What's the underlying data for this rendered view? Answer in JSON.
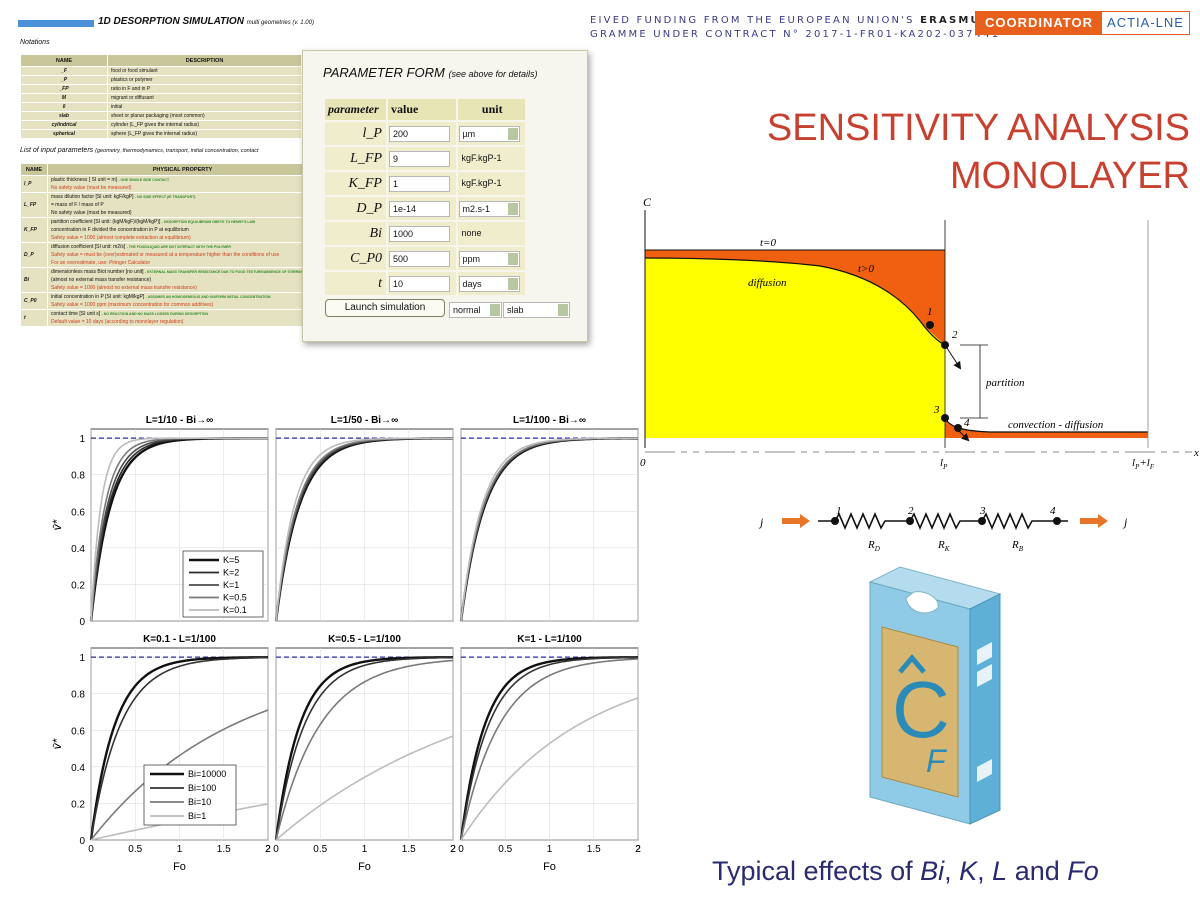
{
  "header": {
    "banner_line1_prefix": "EIVED FUNDING FROM THE EUROPEAN UNION'S ",
    "banner_line1_bold": "ERASMUS",
    "banner_line2": "GRAMME UNDER CONTRACT N° 2017-1-FR01-KA202-037441",
    "coordinator_label": "COORDINATOR",
    "coordinator_name": "ACTIA-LNE"
  },
  "slide_title_line1": "SENSITIVITY ANALYSIS",
  "slide_title_line2": "MONOLAYER",
  "caption": {
    "prefix": "Typical effects of ",
    "bi": "Bi",
    "sep1": ", ",
    "k": "K",
    "sep2": ", ",
    "l": "L",
    "and": " and ",
    "fo": "Fo"
  },
  "spreadsheet": {
    "title": "1D DESORPTION SIMULATION",
    "title_suffix": "multi geometries (v. 1.00)",
    "notations_label": "Notations",
    "notation_headers": [
      "NAME",
      "DESCRIPTION"
    ],
    "notations": [
      [
        "_F",
        "food or food simulant"
      ],
      [
        "_P",
        "plastics or polymer"
      ],
      [
        "_FP",
        "ratio in F and in P"
      ],
      [
        "M",
        "migrant or diffusant"
      ],
      [
        "0",
        "initial"
      ],
      [
        "slab",
        "sheet or planar packaging (most common)"
      ],
      [
        "cylindrical",
        "cylinder (L_FP gives the internal radius)"
      ],
      [
        "spherical",
        "sphere (L_FP gives the internal radius)"
      ]
    ],
    "input_label": "List of input parameters",
    "input_label_suffix": "(geometry, thermodynamics, transport, initial concentration, contact",
    "param_headers": [
      "NAME",
      "PHYSICAL PROPERTY"
    ],
    "params": [
      {
        "name": "l_P",
        "lines": [
          {
            "t": "plastic thickness [ SI unit = m]",
            "g": "- ONE SINGLE SIDE CONTACT"
          },
          {
            "t": "No safety value (must be measured)",
            "r": true
          }
        ]
      },
      {
        "name": "L_FP",
        "lines": [
          {
            "t": "mass dilution factor [SI unit: kgF/kgP]",
            "g": "- NO SIDE EFFECT (IE TRANSPORT)"
          },
          {
            "t": "= mass of F / mass of P"
          },
          {
            "t": "No safety value (must be measured)"
          }
        ]
      },
      {
        "name": "K_FP",
        "lines": [
          {
            "t": "partition coefficient [SI unit: (kgM/kgF)/(kgM/kgP)]",
            "g": "- DESORPTION EQUILIBRIUM OBEYS TO HENRY'S LAW"
          },
          {
            "t": "concentration in F divided the concentration in P at equilibrium"
          },
          {
            "t": "Safety value = 1000 (almost complete extraction at equilibrium)",
            "r": true
          }
        ]
      },
      {
        "name": "D_P",
        "lines": [
          {
            "t": "diffusion coefficient [SI unit: m2/s]",
            "g": "- THE FOOD/LIQUID ARE NOT INTERACT WITH THE POLYMER"
          },
          {
            "t": "Safety value = must be (over)estimated or measured at a temperature higher than the conditions of use",
            "r": true
          },
          {
            "t": "For an overestimate, use: Piringer Calculator",
            "r": true
          }
        ]
      },
      {
        "name": "Bi",
        "lines": [
          {
            "t": "dimensionless mass Biot number [no unit]",
            "g": "- EXTERNAL MASS TRANSFER RESISTANCE DUE TO FOOD TEXTURE/ABSENCE OF STIRRING"
          },
          {
            "t": "(almost no external mass transfer resistance)"
          },
          {
            "t": "Safety value = 1000 (almost no external mass transfer resistance)",
            "r": true
          }
        ]
      },
      {
        "name": "C_P0",
        "lines": [
          {
            "t": "initial concentration in P [SI unit: kgM/kgP]",
            "g": "- ASSUMES AN HOMOGENEOUS AND UNIFORM INITIAL CONCENTRATION"
          },
          {
            "t": "Safety value = 1000 ppm (maximum concentration for common additives)",
            "r": true
          }
        ]
      },
      {
        "name": "t",
        "lines": [
          {
            "t": "contact time [SI unit s]",
            "g": "- NO REACTION AND NO MASS LOSSES DURING DESORPTION"
          },
          {
            "t": "Default value = 10 days (according to monolayer regulation)",
            "r": true
          }
        ]
      }
    ]
  },
  "form": {
    "title": "PARAMETER FORM",
    "title_note": "(see above for details)",
    "col_parameter": "parameter",
    "col_value": "value",
    "col_unit": "unit",
    "rows": [
      {
        "param": "l_P",
        "value": "200",
        "unit": "µm",
        "unit_dropdown": true
      },
      {
        "param": "L_FP",
        "value": "9",
        "unit": "kgF.kgP-1",
        "unit_dropdown": false
      },
      {
        "param": "K_FP",
        "value": "1",
        "unit": "kgF.kgP-1",
        "unit_dropdown": false
      },
      {
        "param": "D_P",
        "value": "1e-14",
        "unit": "m2.s-1",
        "unit_dropdown": true
      },
      {
        "param": "Bi",
        "value": "1000",
        "unit": "none",
        "unit_dropdown": false
      },
      {
        "param": "C_P0",
        "value": "500",
        "unit": "ppm",
        "unit_dropdown": true
      },
      {
        "param": "t",
        "value": "10",
        "unit": "days",
        "unit_dropdown": true
      }
    ],
    "launch_label": "Launch simulation",
    "mode_value": "normal",
    "geometry_value": "slab"
  },
  "diagram": {
    "axis_c": "C",
    "axis_x": "x",
    "t0": "t=0",
    "tpos": "t>0",
    "diffusion": "diffusion",
    "partition": "partition",
    "convection": "convection - diffusion",
    "origin": "0",
    "lp": "l",
    "lp_sub": "P",
    "lplf": "l",
    "lplf_sub1": "P",
    "lplf_plus": "+l",
    "lplf_sub2": "F",
    "points": [
      "1",
      "2",
      "3",
      "4"
    ],
    "colors": {
      "polymer": "#ffff00",
      "released": "#f06010"
    }
  },
  "resistance": {
    "j_in": "j",
    "j_out": "j",
    "nodes": [
      "1",
      "2",
      "3",
      "4"
    ],
    "labels": [
      {
        "r": "R",
        "sub": "D"
      },
      {
        "r": "R",
        "sub": "K"
      },
      {
        "r": "R",
        "sub": "B"
      }
    ]
  },
  "logo": {
    "letter": "C",
    "sub": "F"
  },
  "chart_data": [
    {
      "type": "line",
      "title": "L=1/10 - Bi→∞",
      "xlabel": "",
      "ylabel": "v̄*",
      "xlim": [
        0,
        2
      ],
      "ylim": [
        0,
        1.05
      ],
      "x_ticks": [
        "0",
        "0.5",
        "1",
        "1.5",
        "2"
      ],
      "y_ticks": [
        "0",
        "0.2",
        "0.4",
        "0.6",
        "0.8",
        "1"
      ],
      "series": [
        {
          "name": "K=5",
          "rate": 4.5,
          "plateau": 1.0
        },
        {
          "name": "K=2",
          "rate": 4.9,
          "plateau": 1.0
        },
        {
          "name": "K=1",
          "rate": 5.4,
          "plateau": 1.0
        },
        {
          "name": "K=0.5",
          "rate": 6.3,
          "plateau": 1.0
        },
        {
          "name": "K=0.1",
          "rate": 9.0,
          "plateau": 1.0
        }
      ]
    },
    {
      "type": "line",
      "title": "L=1/50 - Bi→∞",
      "xlim": [
        0,
        2
      ],
      "ylim": [
        0,
        1.05
      ],
      "series": [
        {
          "name": "K=5",
          "rate": 3.8,
          "plateau": 1.0
        },
        {
          "name": "K=2",
          "rate": 3.9,
          "plateau": 1.0
        },
        {
          "name": "K=1",
          "rate": 4.0,
          "plateau": 1.0
        },
        {
          "name": "K=0.5",
          "rate": 4.2,
          "plateau": 1.0
        },
        {
          "name": "K=0.1",
          "rate": 4.8,
          "plateau": 1.0
        }
      ]
    },
    {
      "type": "line",
      "title": "L=1/100 - Bi→∞",
      "xlim": [
        0,
        2
      ],
      "ylim": [
        0,
        1.05
      ],
      "series": [
        {
          "name": "K=5",
          "rate": 3.7,
          "plateau": 1.0
        },
        {
          "name": "K=2",
          "rate": 3.75,
          "plateau": 1.0
        },
        {
          "name": "K=1",
          "rate": 3.8,
          "plateau": 1.0
        },
        {
          "name": "K=0.5",
          "rate": 3.9,
          "plateau": 1.0
        },
        {
          "name": "K=0.1",
          "rate": 4.2,
          "plateau": 1.0
        }
      ]
    },
    {
      "type": "line",
      "title": "K=0.1 - L=1/100",
      "xlabel": "Fo",
      "ylabel": "v̄*",
      "xlim": [
        0,
        2
      ],
      "ylim": [
        0,
        1.05
      ],
      "series": [
        {
          "name": "Bi=10000",
          "rate": 3.7,
          "plateau": 1.0
        },
        {
          "name": "Bi=100",
          "rate": 3.0,
          "plateau": 1.0
        },
        {
          "name": "Bi=10",
          "rate": 0.62,
          "plateau": 1.0
        },
        {
          "name": "Bi=1",
          "rate": 0.11,
          "plateau": 1.0
        }
      ]
    },
    {
      "type": "line",
      "title": "K=0.5 - L=1/100",
      "xlabel": "Fo",
      "xlim": [
        0,
        2
      ],
      "ylim": [
        0,
        1.05
      ],
      "series": [
        {
          "name": "Bi=10000",
          "rate": 3.7,
          "plateau": 1.0
        },
        {
          "name": "Bi=100",
          "rate": 3.1,
          "plateau": 1.0
        },
        {
          "name": "Bi=10",
          "rate": 2.0,
          "plateau": 1.0
        },
        {
          "name": "Bi=1",
          "rate": 0.42,
          "plateau": 1.0
        }
      ]
    },
    {
      "type": "line",
      "title": "K=1 - L=1/100",
      "xlabel": "Fo",
      "xlim": [
        0,
        2
      ],
      "ylim": [
        0,
        1.05
      ],
      "series": [
        {
          "name": "Bi=10000",
          "rate": 3.7,
          "plateau": 1.0
        },
        {
          "name": "Bi=100",
          "rate": 3.2,
          "plateau": 1.0
        },
        {
          "name": "Bi=10",
          "rate": 2.3,
          "plateau": 1.0
        },
        {
          "name": "Bi=1",
          "rate": 0.75,
          "plateau": 1.0
        }
      ]
    }
  ],
  "legend_top": [
    "K=5",
    "K=2",
    "K=1",
    "K=0.5",
    "K=0.1"
  ],
  "legend_bottom": [
    "Bi=10000",
    "Bi=100",
    "Bi=10",
    "Bi=1"
  ]
}
